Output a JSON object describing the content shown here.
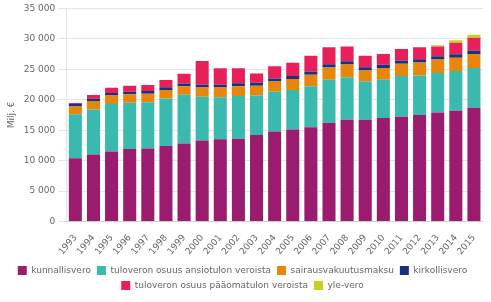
{
  "chart_data": {
    "type": "bar",
    "stacked": true,
    "ylabel": "Milj. €",
    "categories": [
      "1993",
      "1994",
      "1995",
      "1996",
      "1997",
      "1998",
      "1999",
      "2000",
      "2001",
      "2002",
      "2003",
      "2004",
      "2005",
      "2006",
      "2007",
      "2008",
      "2009",
      "2010",
      "2011",
      "2012",
      "2013",
      "2014",
      "2015"
    ],
    "series": [
      {
        "name": "kunnallisvero",
        "color": "#9B1B6E",
        "values": [
          10400,
          11000,
          11500,
          11900,
          12000,
          12400,
          12800,
          13300,
          13500,
          13600,
          14200,
          14800,
          15100,
          15500,
          16200,
          16700,
          16700,
          17000,
          17200,
          17500,
          17900,
          18200,
          18700
        ]
      },
      {
        "name": "tuloveron osuus ansiotulon veroista",
        "color": "#3ABAAF",
        "values": [
          7200,
          7400,
          7800,
          7600,
          7600,
          7800,
          8000,
          7200,
          6900,
          7000,
          6500,
          6500,
          6500,
          6700,
          7100,
          7000,
          6300,
          6300,
          6700,
          6500,
          6500,
          6500,
          6500
        ]
      },
      {
        "name": "sairausvakuutusmaksu",
        "color": "#E8860C",
        "values": [
          1300,
          1400,
          1400,
          1400,
          1400,
          1400,
          1400,
          1500,
          1600,
          1600,
          1600,
          1700,
          1800,
          1900,
          2000,
          2100,
          1800,
          1900,
          2000,
          2100,
          2200,
          2200,
          2300
        ]
      },
      {
        "name": "kirkollisvero",
        "color": "#1A3080",
        "values": [
          380,
          390,
          420,
          430,
          430,
          440,
          460,
          470,
          480,
          490,
          490,
          490,
          490,
          510,
          530,
          540,
          520,
          530,
          530,
          540,
          550,
          560,
          570
        ]
      },
      {
        "name": "tuloveron osuus pääomatulon veroista",
        "color": "#E8205A",
        "values": [
          200,
          600,
          850,
          950,
          1000,
          1200,
          1600,
          3900,
          2700,
          2500,
          1500,
          2000,
          2200,
          2600,
          2800,
          2400,
          1900,
          1800,
          1900,
          2000,
          1600,
          1900,
          2100
        ]
      },
      {
        "name": "yle-vero",
        "color": "#C8D020",
        "values": [
          0,
          0,
          0,
          0,
          0,
          0,
          0,
          0,
          0,
          0,
          0,
          0,
          0,
          0,
          0,
          0,
          0,
          0,
          0,
          0,
          200,
          400,
          500
        ]
      }
    ],
    "ylim": [
      0,
      35000
    ],
    "yticks": [
      0,
      {
        "value": 5000,
        "label": "5 000"
      },
      {
        "value": 10000,
        "label": "10 000"
      },
      {
        "value": 15000,
        "label": "15 000"
      },
      {
        "value": 20000,
        "label": "20 000"
      },
      {
        "value": 25000,
        "label": "25 000"
      },
      {
        "value": 30000,
        "label": "30 000"
      },
      {
        "value": 35000,
        "label": "35 000"
      }
    ],
    "grid": true,
    "legend": "bottom"
  }
}
